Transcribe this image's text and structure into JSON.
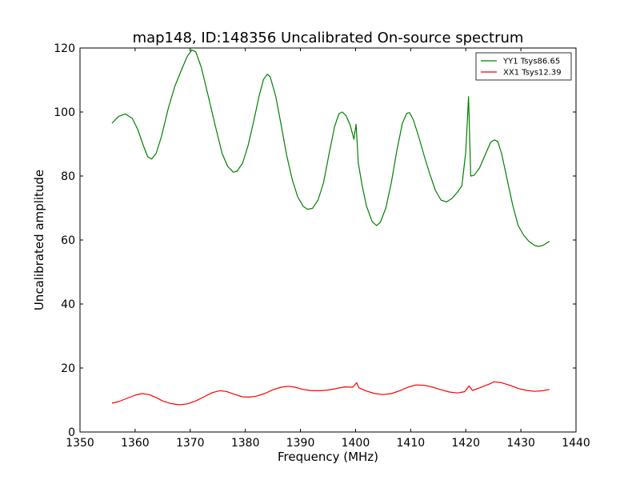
{
  "chart_data": {
    "type": "line",
    "title": "map148, ID:148356 Uncalibrated On-source spectrum",
    "xlabel": "Frequency (MHz)",
    "ylabel": "Uncalibrated amplitude",
    "xlim": [
      1350,
      1440
    ],
    "ylim": [
      0,
      120
    ],
    "xticks": [
      1350,
      1360,
      1370,
      1380,
      1390,
      1400,
      1410,
      1420,
      1430,
      1440
    ],
    "yticks": [
      0,
      20,
      40,
      60,
      80,
      100,
      120
    ],
    "grid": false,
    "legend_position": "top-right",
    "series": [
      {
        "name": "YY1 Tsys86.65",
        "color": "#008000",
        "points": [
          [
            1355.8,
            96.5
          ],
          [
            1357.0,
            98.6
          ],
          [
            1358.2,
            99.4
          ],
          [
            1359.5,
            98.0
          ],
          [
            1360.5,
            94.5
          ],
          [
            1361.5,
            89.5
          ],
          [
            1362.3,
            86.0
          ],
          [
            1363.0,
            85.3
          ],
          [
            1363.8,
            87.0
          ],
          [
            1364.8,
            92.5
          ],
          [
            1366.0,
            101.0
          ],
          [
            1367.2,
            108.0
          ],
          [
            1368.5,
            113.5
          ],
          [
            1369.5,
            117.5
          ],
          [
            1370.3,
            119.4
          ],
          [
            1371.0,
            118.8
          ],
          [
            1372.0,
            114.0
          ],
          [
            1373.2,
            105.5
          ],
          [
            1374.5,
            96.0
          ],
          [
            1375.8,
            87.0
          ],
          [
            1376.8,
            83.0
          ],
          [
            1377.8,
            81.2
          ],
          [
            1378.5,
            81.5
          ],
          [
            1379.5,
            84.0
          ],
          [
            1380.5,
            89.5
          ],
          [
            1381.5,
            97.0
          ],
          [
            1382.5,
            105.0
          ],
          [
            1383.3,
            110.2
          ],
          [
            1384.0,
            111.8
          ],
          [
            1384.5,
            111.0
          ],
          [
            1385.5,
            105.0
          ],
          [
            1386.5,
            96.0
          ],
          [
            1387.5,
            86.5
          ],
          [
            1388.5,
            79.0
          ],
          [
            1389.5,
            73.5
          ],
          [
            1390.5,
            70.5
          ],
          [
            1391.3,
            69.6
          ],
          [
            1392.2,
            69.9
          ],
          [
            1393.2,
            72.5
          ],
          [
            1394.2,
            78.0
          ],
          [
            1395.2,
            87.0
          ],
          [
            1396.2,
            95.5
          ],
          [
            1397.0,
            99.5
          ],
          [
            1397.6,
            100.0
          ],
          [
            1398.3,
            98.8
          ],
          [
            1399.0,
            96.0
          ],
          [
            1399.7,
            91.5
          ],
          [
            1400.1,
            96.2
          ],
          [
            1400.5,
            84.0
          ],
          [
            1401.2,
            77.0
          ],
          [
            1402.0,
            70.5
          ],
          [
            1403.0,
            65.8
          ],
          [
            1403.8,
            64.5
          ],
          [
            1404.5,
            65.5
          ],
          [
            1405.5,
            70.0
          ],
          [
            1406.5,
            78.0
          ],
          [
            1407.5,
            88.0
          ],
          [
            1408.5,
            96.5
          ],
          [
            1409.3,
            99.6
          ],
          [
            1409.8,
            99.8
          ],
          [
            1410.5,
            97.5
          ],
          [
            1411.5,
            92.0
          ],
          [
            1412.5,
            86.0
          ],
          [
            1413.5,
            80.5
          ],
          [
            1414.5,
            75.5
          ],
          [
            1415.5,
            72.5
          ],
          [
            1416.5,
            71.9
          ],
          [
            1417.5,
            73.0
          ],
          [
            1418.5,
            75.0
          ],
          [
            1419.3,
            77.0
          ],
          [
            1420.0,
            87.5
          ],
          [
            1420.5,
            104.8
          ],
          [
            1420.9,
            80.0
          ],
          [
            1421.5,
            80.2
          ],
          [
            1422.5,
            82.5
          ],
          [
            1423.5,
            86.5
          ],
          [
            1424.5,
            90.5
          ],
          [
            1425.2,
            91.3
          ],
          [
            1425.8,
            90.8
          ],
          [
            1426.5,
            87.0
          ],
          [
            1427.5,
            79.0
          ],
          [
            1428.5,
            71.0
          ],
          [
            1429.5,
            64.5
          ],
          [
            1430.5,
            61.5
          ],
          [
            1431.5,
            59.5
          ],
          [
            1432.5,
            58.3
          ],
          [
            1433.2,
            58.0
          ],
          [
            1434.0,
            58.3
          ],
          [
            1435.2,
            59.6
          ]
        ]
      },
      {
        "name": "XX1 Tsys12.39",
        "color": "#ff0000",
        "points": [
          [
            1355.8,
            9.0
          ],
          [
            1357.0,
            9.5
          ],
          [
            1358.5,
            10.5
          ],
          [
            1360.0,
            11.5
          ],
          [
            1361.2,
            12.0
          ],
          [
            1362.5,
            11.7
          ],
          [
            1363.8,
            10.8
          ],
          [
            1365.0,
            9.7
          ],
          [
            1366.5,
            8.9
          ],
          [
            1368.0,
            8.5
          ],
          [
            1369.5,
            8.8
          ],
          [
            1371.0,
            9.7
          ],
          [
            1372.5,
            11.0
          ],
          [
            1374.0,
            12.3
          ],
          [
            1375.3,
            12.9
          ],
          [
            1376.5,
            12.7
          ],
          [
            1378.0,
            11.8
          ],
          [
            1379.5,
            11.0
          ],
          [
            1380.8,
            10.9
          ],
          [
            1382.0,
            11.2
          ],
          [
            1383.5,
            12.0
          ],
          [
            1385.0,
            13.2
          ],
          [
            1386.5,
            14.0
          ],
          [
            1387.8,
            14.3
          ],
          [
            1389.0,
            14.0
          ],
          [
            1390.5,
            13.3
          ],
          [
            1392.0,
            12.9
          ],
          [
            1393.5,
            12.9
          ],
          [
            1395.0,
            13.1
          ],
          [
            1396.5,
            13.6
          ],
          [
            1398.0,
            14.1
          ],
          [
            1399.5,
            14.0
          ],
          [
            1400.2,
            15.4
          ],
          [
            1400.6,
            13.8
          ],
          [
            1402.0,
            12.8
          ],
          [
            1403.5,
            12.0
          ],
          [
            1405.0,
            11.7
          ],
          [
            1406.5,
            12.0
          ],
          [
            1408.0,
            12.9
          ],
          [
            1409.5,
            14.0
          ],
          [
            1411.0,
            14.7
          ],
          [
            1412.5,
            14.6
          ],
          [
            1414.0,
            14.0
          ],
          [
            1415.5,
            13.2
          ],
          [
            1417.0,
            12.5
          ],
          [
            1418.5,
            12.2
          ],
          [
            1419.8,
            12.6
          ],
          [
            1420.6,
            14.4
          ],
          [
            1421.2,
            13.0
          ],
          [
            1422.5,
            13.8
          ],
          [
            1424.0,
            14.8
          ],
          [
            1425.2,
            15.7
          ],
          [
            1426.5,
            15.4
          ],
          [
            1428.0,
            14.6
          ],
          [
            1429.5,
            13.6
          ],
          [
            1431.0,
            13.0
          ],
          [
            1432.5,
            12.7
          ],
          [
            1434.0,
            12.9
          ],
          [
            1435.2,
            13.3
          ]
        ]
      }
    ]
  }
}
